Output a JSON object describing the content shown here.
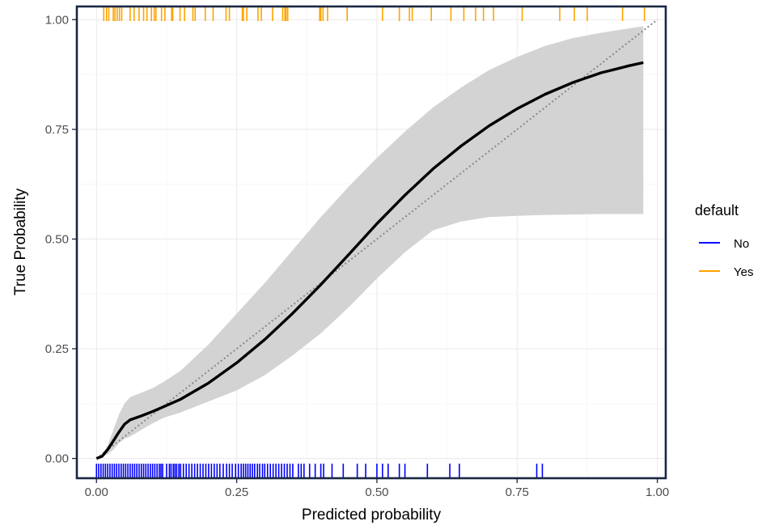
{
  "chart_data": {
    "type": "line",
    "title": "",
    "xlabel": "Predicted probability",
    "ylabel": "True Probability",
    "xlim": [
      -0.035,
      1.015
    ],
    "ylim": [
      -0.045,
      1.03
    ],
    "x_ticks": [
      0.0,
      0.25,
      0.5,
      0.75,
      1.0
    ],
    "x_tick_labels": [
      "0.00",
      "0.25",
      "0.50",
      "0.75",
      "1.00"
    ],
    "y_ticks": [
      0.0,
      0.25,
      0.5,
      0.75,
      1.0
    ],
    "y_tick_labels": [
      "0.00",
      "0.25",
      "0.50",
      "0.75",
      "1.00"
    ],
    "grid": true,
    "legend": {
      "title": "default",
      "position": "right",
      "entries": [
        {
          "label": "No",
          "color": "#0000FF"
        },
        {
          "label": "Yes",
          "color": "#FFA500"
        }
      ]
    },
    "series": [
      {
        "kind": "calibration-curve",
        "color": "#000000",
        "x": [
          0.0,
          0.01,
          0.02,
          0.03,
          0.04,
          0.05,
          0.06,
          0.08,
          0.1,
          0.12,
          0.15,
          0.2,
          0.25,
          0.3,
          0.35,
          0.4,
          0.45,
          0.5,
          0.55,
          0.6,
          0.65,
          0.7,
          0.75,
          0.8,
          0.85,
          0.9,
          0.95,
          0.975
        ],
        "y": [
          0.0,
          0.005,
          0.02,
          0.04,
          0.06,
          0.078,
          0.088,
          0.097,
          0.107,
          0.118,
          0.135,
          0.172,
          0.218,
          0.271,
          0.331,
          0.396,
          0.465,
          0.535,
          0.6,
          0.66,
          0.712,
          0.758,
          0.797,
          0.83,
          0.857,
          0.879,
          0.895,
          0.902
        ]
      },
      {
        "kind": "confidence-band",
        "color": "#D3D3D3",
        "x": [
          0.0,
          0.01,
          0.02,
          0.03,
          0.04,
          0.05,
          0.06,
          0.08,
          0.1,
          0.12,
          0.15,
          0.2,
          0.25,
          0.3,
          0.35,
          0.4,
          0.45,
          0.5,
          0.55,
          0.6,
          0.65,
          0.7,
          0.75,
          0.8,
          0.85,
          0.9,
          0.95,
          0.975
        ],
        "lower": [
          0.0,
          0.003,
          0.01,
          0.02,
          0.035,
          0.045,
          0.05,
          0.065,
          0.08,
          0.093,
          0.105,
          0.13,
          0.155,
          0.19,
          0.235,
          0.285,
          0.345,
          0.41,
          0.47,
          0.52,
          0.54,
          0.55,
          0.553,
          0.555,
          0.556,
          0.557,
          0.557,
          0.557
        ],
        "upper": [
          0.0,
          0.01,
          0.03,
          0.065,
          0.1,
          0.125,
          0.14,
          0.15,
          0.16,
          0.175,
          0.2,
          0.26,
          0.33,
          0.4,
          0.475,
          0.55,
          0.62,
          0.685,
          0.745,
          0.8,
          0.845,
          0.885,
          0.915,
          0.94,
          0.958,
          0.97,
          0.98,
          0.985
        ]
      },
      {
        "kind": "reference-line",
        "style": "dotted",
        "color": "#888888",
        "x": [
          0.0,
          1.0
        ],
        "y": [
          0.0,
          1.0
        ]
      }
    ],
    "rug": {
      "No": [
        0.0,
        0.004,
        0.008,
        0.012,
        0.016,
        0.02,
        0.024,
        0.028,
        0.032,
        0.036,
        0.04,
        0.044,
        0.048,
        0.052,
        0.056,
        0.06,
        0.064,
        0.068,
        0.072,
        0.076,
        0.08,
        0.084,
        0.088,
        0.092,
        0.096,
        0.1,
        0.104,
        0.108,
        0.112,
        0.115,
        0.118,
        0.125,
        0.13,
        0.133,
        0.137,
        0.14,
        0.143,
        0.147,
        0.15,
        0.155,
        0.16,
        0.165,
        0.17,
        0.175,
        0.18,
        0.185,
        0.19,
        0.195,
        0.2,
        0.205,
        0.21,
        0.215,
        0.22,
        0.226,
        0.232,
        0.237,
        0.242,
        0.248,
        0.253,
        0.258,
        0.262,
        0.266,
        0.27,
        0.274,
        0.278,
        0.282,
        0.287,
        0.291,
        0.296,
        0.3,
        0.305,
        0.31,
        0.315,
        0.32,
        0.325,
        0.33,
        0.335,
        0.34,
        0.345,
        0.35,
        0.36,
        0.365,
        0.37,
        0.38,
        0.39,
        0.4,
        0.405,
        0.42,
        0.44,
        0.465,
        0.48,
        0.5,
        0.51,
        0.52,
        0.54,
        0.55,
        0.59,
        0.63,
        0.647,
        0.785,
        0.795
      ],
      "Yes": [
        0.013,
        0.018,
        0.022,
        0.03,
        0.033,
        0.037,
        0.041,
        0.045,
        0.06,
        0.067,
        0.076,
        0.084,
        0.09,
        0.098,
        0.103,
        0.106,
        0.116,
        0.122,
        0.134,
        0.136,
        0.149,
        0.157,
        0.172,
        0.176,
        0.194,
        0.208,
        0.231,
        0.237,
        0.26,
        0.262,
        0.268,
        0.288,
        0.294,
        0.314,
        0.332,
        0.336,
        0.338,
        0.341,
        0.398,
        0.4,
        0.404,
        0.412,
        0.447,
        0.51,
        0.54,
        0.558,
        0.563,
        0.597,
        0.632,
        0.655,
        0.676,
        0.69,
        0.708,
        0.759,
        0.826,
        0.852,
        0.875,
        0.938,
        0.977
      ]
    }
  }
}
